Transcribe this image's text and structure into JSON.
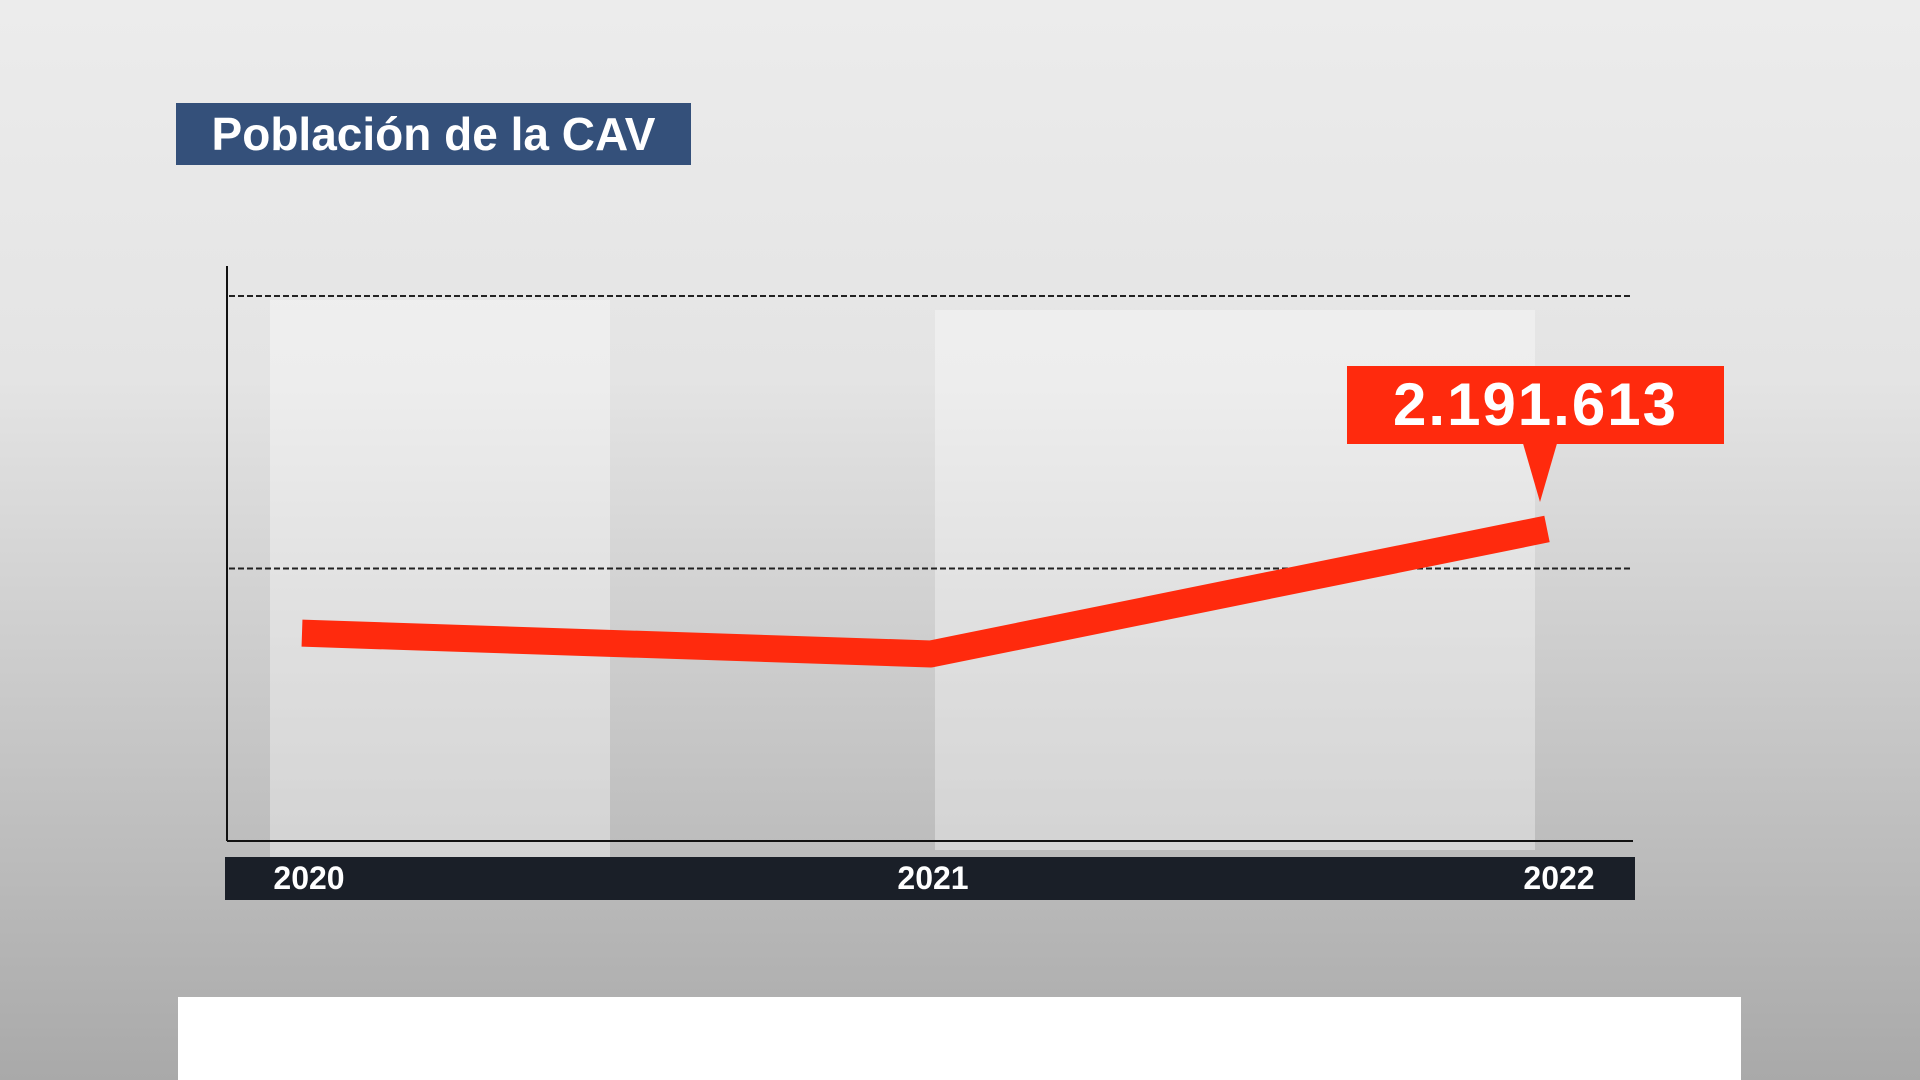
{
  "title": "Población de la CAV",
  "chart_data": {
    "type": "line",
    "title": "Población de la CAV",
    "categories": [
      "2020",
      "2021",
      "2022"
    ],
    "series": [
      {
        "values": [
          2187100,
          2186200,
          2191613
        ],
        "color": "#ff2a0d"
      }
    ],
    "data_labels": [
      {
        "category": "2022",
        "text": "2.191.613"
      }
    ],
    "ylim": [
      2178100,
      2203000
    ],
    "gridlines": [
      2189900,
      2201700
    ],
    "grid": "dashed horizontal",
    "xlabel": "",
    "ylabel": ""
  }
}
